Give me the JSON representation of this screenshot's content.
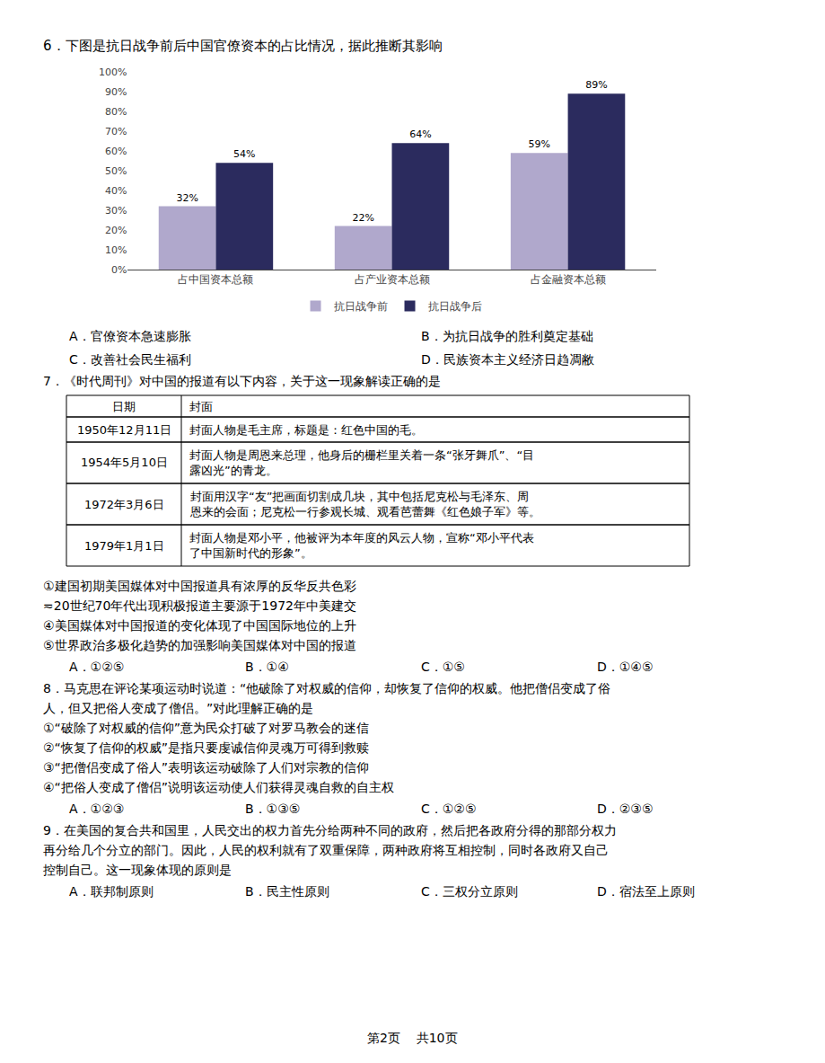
{
  "chart_data": {
    "type": "bar",
    "title": "6．下图是抗日战争前后中国官僚资本的占比情况，据此推断其影响",
    "categories": [
      "占中国资本总额",
      "占产业资本总额",
      "占金融资本总额"
    ],
    "series": [
      {
        "name": "抗日战争前",
        "color": "#b0a8cc",
        "values": [
          32,
          22,
          59
        ],
        "value_labels": [
          "32%",
          "22%",
          "59%"
        ]
      },
      {
        "name": "抗日战争后",
        "color": "#2b2b5e",
        "values": [
          54,
          64,
          89
        ],
        "value_labels": [
          "54%",
          "64%",
          "89%"
        ]
      }
    ],
    "ylim": [
      0,
      100
    ],
    "yticks": [
      {
        "value": 0,
        "label": "0%"
      },
      {
        "value": 10,
        "label": "10%"
      },
      {
        "value": 20,
        "label": "20%"
      },
      {
        "value": 30,
        "label": "30%"
      },
      {
        "value": 40,
        "label": "40%"
      },
      {
        "value": 50,
        "label": "50%"
      },
      {
        "value": 60,
        "label": "60%"
      },
      {
        "value": 70,
        "label": "70%"
      },
      {
        "value": 80,
        "label": "80%"
      },
      {
        "value": 90,
        "label": "90%"
      },
      {
        "value": 100,
        "label": "100%"
      }
    ],
    "grid": false,
    "legend": "bottom",
    "data_labels": true,
    "annotations": [
      [
        "A．官僚资本急速膨胀",
        "B．为抗日战争的胜利奠定基础"
      ],
      [
        "C．改善社会民生福利",
        "D．民族资本主义经济日趋凋敝"
      ],
      "7．《时代周刊》对中国的报道有以下内容，关于这一现象解读正确的是",
      {
        "table": {
          "header": [
            "日期",
            "封面"
          ],
          "rows": [
            [
              "1950年12月11日",
              "封面人物是毛主席，标题是：红色中国的毛。"
            ],
            [
              "1954年5月10日",
              "封面人物是周恩来总理，他身后的栅栏里关着一条“张牙舞爪”、“目\n露凶光”的青龙。"
            ],
            [
              "1972年3月6日",
              "封面用汉字“友”把画面切割成几块，其中包括尼克松与毛泽东、周\n恩来的会面；尼克松一行参观长城、观看芭蕾舞《红色娘子军》等。"
            ],
            [
              "1979年1月1日",
              "封面人物是邓小平，他被评为本年度的风云人物，宣称“邓小平代表\n了中国新时代的形象”。"
            ]
          ]
        }
      },
      "①建国初期美国媒体对中国报道具有浓厚的反华反共色彩",
      "≂20世纪70年代出现积极报道主要源于1972年中美建交",
      "④美国媒体对中国报道的变化体现了中国国际地位的上升",
      "⑤世界政治多极化趋势的加强影响美国媒体对中国的报道",
      [
        "A．①②⑤",
        "B．①④",
        "C．①⑤",
        "D．①④⑤"
      ],
      "8．马克思在评论某项运动时说道：“他破除了对权威的信仰，却恢复了信仰的权威。他把僧侣变成了俗",
      "人，但又把俗人变成了僧侣。”对此理解正确的是",
      "①“破除了对权威的信仰”意为民众打破了对罗马教会的迷信",
      "②“恢复了信仰的权威”是指只要虔诚信仰灵魂万可得到救赎",
      "③“把僧侣变成了俗人”表明该运动破除了人们对宗教的信仰",
      "④“把俗人变成了僧侣”说明该运动使人们获得灵魂自救的自主权",
      [
        "A．①②③",
        "B．①③⑤",
        "C．①②⑤",
        "D．②③⑤"
      ],
      "9．在美国的复合共和国里，人民交出的权力首先分给两种不同的政府，然后把各政府分得的那部分权力",
      "再分给几个分立的部门。因此，人民的权利就有了双重保障，两种政府将互相控制，同时各政府又自己",
      "控制自己。这一现象体现的原则是",
      [
        "A．联邦制原则",
        "B．民主性原则",
        "C．三权分立原则",
        "D．宿法至上原则"
      ]
    ],
    "footer": "第2页    共10页"
  }
}
